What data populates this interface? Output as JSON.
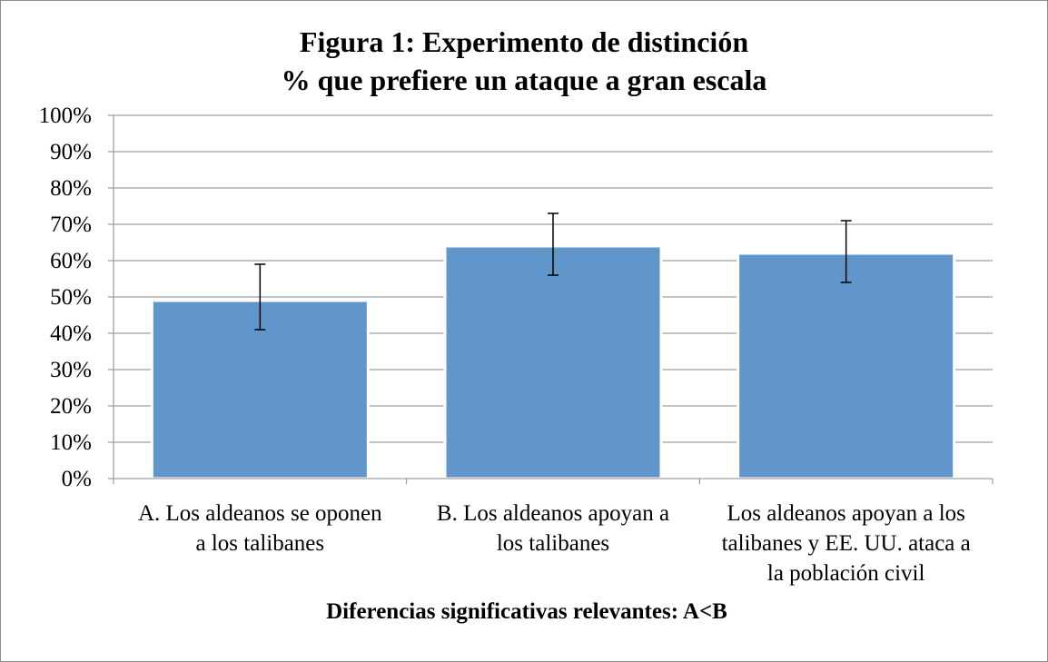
{
  "chart_data": {
    "type": "bar",
    "title": "Figura 1: Experimento de distinción",
    "subtitle": "% que prefiere un ataque a gran escala",
    "categories": [
      [
        "A. Los aldeanos se oponen",
        "a los talibanes"
      ],
      [
        "B. Los aldeanos apoyan a",
        "los talibanes"
      ],
      [
        "Los aldeanos apoyan a los",
        "talibanes y EE. UU. ataca a",
        "la población civil"
      ]
    ],
    "values": [
      49,
      64,
      62
    ],
    "error_low": [
      41,
      56,
      54
    ],
    "error_high": [
      59,
      73,
      71
    ],
    "ylim": [
      0,
      100
    ],
    "yticks": [
      0,
      10,
      20,
      30,
      40,
      50,
      60,
      70,
      80,
      90,
      100
    ],
    "ytick_labels": [
      "0%",
      "10%",
      "20%",
      "30%",
      "40%",
      "50%",
      "60%",
      "70%",
      "80%",
      "90%",
      "100%"
    ],
    "grid": true,
    "bar_color": "#6096c9",
    "xlabel": "Diferencias significativas relevantes: A<B",
    "ylabel": ""
  }
}
